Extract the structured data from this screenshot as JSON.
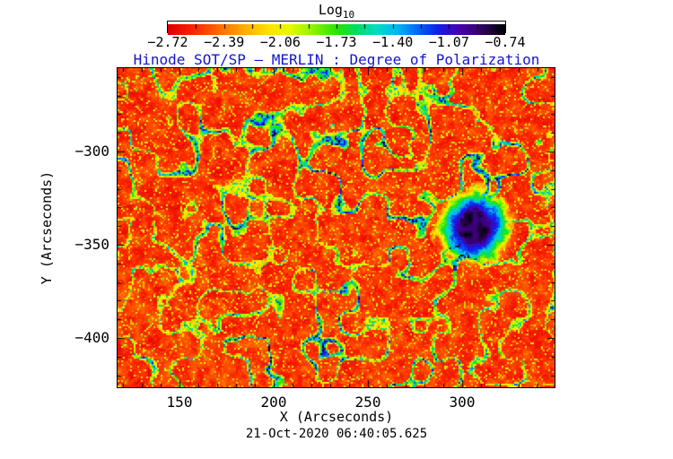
{
  "figure": {
    "background": "#ffffff",
    "colorbar": {
      "title_main": "Log",
      "title_sub": "10",
      "tick_labels": [
        "−2.72",
        "−2.39",
        "−2.06",
        "−1.73",
        "−1.40",
        "−1.07",
        "−0.74"
      ]
    },
    "title": {
      "text": "Hinode SOT/SP – MERLIN : Degree of Polarization",
      "color": "#1414d6"
    },
    "x_axis": {
      "label": "X (Arcseconds)",
      "tick_labels": [
        "150",
        "200",
        "250",
        "300"
      ]
    },
    "y_axis": {
      "label": "Y (Arcseconds)",
      "tick_labels": [
        "−300",
        "−350",
        "−400"
      ]
    },
    "timestamp": "21-Oct-2020 06:40:05.625"
  },
  "chart_data": {
    "type": "heatmap",
    "title": "Hinode SOT/SP – MERLIN : Degree of Polarization",
    "xlabel": "X (Arcseconds)",
    "ylabel": "Y (Arcseconds)",
    "colorbar_title": "Log10",
    "colorbar_tick_values": [
      -2.72,
      -2.39,
      -2.06,
      -1.73,
      -1.4,
      -1.07,
      -0.74
    ],
    "x_ticks": [
      150,
      200,
      250,
      300
    ],
    "y_ticks": [
      -300,
      -350,
      -400
    ],
    "minor_tick_step": 10,
    "x_range": [
      117.1,
      349.0
    ],
    "y_range": [
      -426.4,
      -255.3
    ],
    "timestamp": "21-Oct-2020 06:40:05.625",
    "colormap_stops": [
      [
        0.0,
        "#dc0000"
      ],
      [
        0.07,
        "#fb2000"
      ],
      [
        0.14,
        "#ff6000"
      ],
      [
        0.22,
        "#ffa800"
      ],
      [
        0.3,
        "#ffe400"
      ],
      [
        0.36,
        "#e8fa00"
      ],
      [
        0.43,
        "#8cf400"
      ],
      [
        0.5,
        "#2ae400"
      ],
      [
        0.56,
        "#00dc64"
      ],
      [
        0.62,
        "#00dcc8"
      ],
      [
        0.68,
        "#00b8f0"
      ],
      [
        0.74,
        "#0068f8"
      ],
      [
        0.8,
        "#1020e8"
      ],
      [
        0.86,
        "#4600b4"
      ],
      [
        0.92,
        "#38006e"
      ],
      [
        0.96,
        "#1c0038"
      ],
      [
        1.0,
        "#000000"
      ]
    ],
    "map_features": {
      "background_log10_range": [
        -2.85,
        -2.35
      ],
      "network_log10_range": [
        -1.95,
        -1.05
      ],
      "sunspot": {
        "x_arcsec": 306,
        "y_arcsec": -340,
        "core_radius_arcsec": 8,
        "fringe_radius_arcsec": 21,
        "core_log10": -0.78
      }
    }
  }
}
